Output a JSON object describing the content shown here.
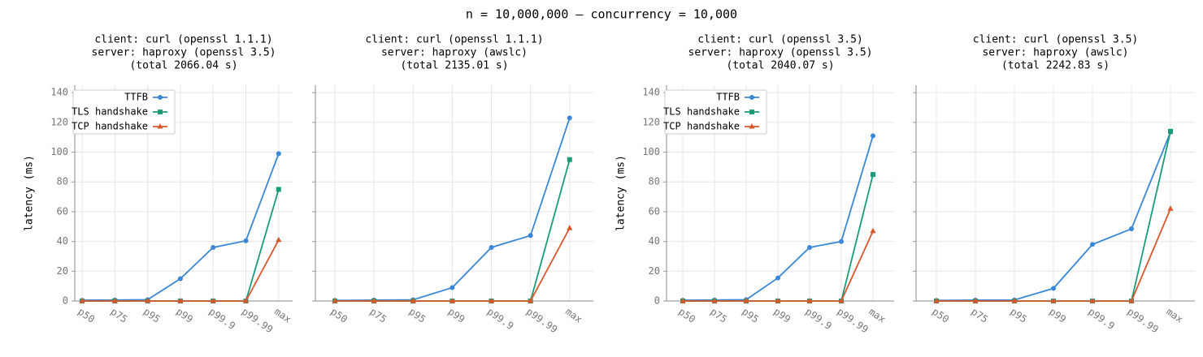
{
  "title": "n = 10,000,000 — concurrency = 10,000",
  "chart_data": [
    {
      "type": "line",
      "title": [
        "client: curl (openssl 1.1.1)",
        "server: haproxy (openssl 3.5)",
        "(total 2066.04 s)"
      ],
      "ylabel": "latency (ms)",
      "ytick_labels": true,
      "legend": "upper left",
      "grid": true,
      "categories": [
        "p50",
        "p75",
        "p95",
        "p99",
        "p99.9",
        "p99.99",
        "max"
      ],
      "ylim": [
        0,
        145
      ],
      "yticks": [
        0,
        20,
        40,
        60,
        80,
        100,
        120,
        140
      ],
      "series": [
        {
          "name": "TTFB",
          "color": "#3a87d8",
          "marker": "circle",
          "values": [
            0.5,
            0.7,
            0.9,
            15,
            36,
            40.5,
            99
          ]
        },
        {
          "name": "TLS handshake",
          "color": "#1a9c7a",
          "marker": "square",
          "values": [
            0,
            0,
            0,
            0,
            0,
            0,
            75
          ]
        },
        {
          "name": "TCP handshake",
          "color": "#d9572b",
          "marker": "triangle",
          "values": [
            0,
            0,
            0,
            0,
            0,
            0,
            41
          ]
        }
      ]
    },
    {
      "type": "line",
      "title": [
        "client: curl (openssl 1.1.1)",
        "server: haproxy (awslc)",
        "(total 2135.01 s)"
      ],
      "ytick_labels": false,
      "grid": true,
      "categories": [
        "p50",
        "p75",
        "p95",
        "p99",
        "p99.9",
        "p99.99",
        "max"
      ],
      "ylim": [
        0,
        145
      ],
      "yticks": [
        0,
        20,
        40,
        60,
        80,
        100,
        120,
        140
      ],
      "series": [
        {
          "color": "#3a87d8",
          "marker": "circle",
          "values": [
            0.4,
            0.6,
            0.8,
            9,
            36,
            44,
            123
          ]
        },
        {
          "color": "#1a9c7a",
          "marker": "square",
          "values": [
            0,
            0,
            0,
            0,
            0,
            0,
            95
          ]
        },
        {
          "color": "#d9572b",
          "marker": "triangle",
          "values": [
            0,
            0,
            0,
            0,
            0,
            0,
            49
          ]
        }
      ]
    },
    {
      "type": "line",
      "title": [
        "client: curl (openssl 3.5)",
        "server: haproxy (openssl 3.5)",
        "(total 2040.07 s)"
      ],
      "ylabel": "latency (ms)",
      "ytick_labels": true,
      "legend": "upper left",
      "grid": true,
      "categories": [
        "p50",
        "p75",
        "p95",
        "p99",
        "p99.9",
        "p99.99",
        "max"
      ],
      "ylim": [
        0,
        145
      ],
      "yticks": [
        0,
        20,
        40,
        60,
        80,
        100,
        120,
        140
      ],
      "series": [
        {
          "name": "TTFB",
          "color": "#3a87d8",
          "marker": "circle",
          "values": [
            0.5,
            0.7,
            0.9,
            15.5,
            36,
            40,
            111
          ]
        },
        {
          "name": "TLS handshake",
          "color": "#1a9c7a",
          "marker": "square",
          "values": [
            0,
            0,
            0,
            0,
            0,
            0,
            85
          ]
        },
        {
          "name": "TCP handshake",
          "color": "#d9572b",
          "marker": "triangle",
          "values": [
            0,
            0,
            0,
            0,
            0,
            0,
            47
          ]
        }
      ]
    },
    {
      "type": "line",
      "title": [
        "client: curl (openssl 3.5)",
        "server: haproxy (awslc)",
        "(total 2242.83 s)"
      ],
      "ytick_labels": false,
      "grid": true,
      "categories": [
        "p50",
        "p75",
        "p95",
        "p99",
        "p99.9",
        "p99.99",
        "max"
      ],
      "ylim": [
        0,
        145
      ],
      "yticks": [
        0,
        20,
        40,
        60,
        80,
        100,
        120,
        140
      ],
      "series": [
        {
          "color": "#3a87d8",
          "marker": "circle",
          "values": [
            0.4,
            0.6,
            0.7,
            8.5,
            38,
            48.5,
            113.5
          ]
        },
        {
          "color": "#1a9c7a",
          "marker": "square",
          "values": [
            0,
            0,
            0,
            0,
            0,
            0,
            114
          ]
        },
        {
          "color": "#d9572b",
          "marker": "triangle",
          "values": [
            0,
            0,
            0,
            0,
            0,
            0,
            62
          ]
        }
      ]
    }
  ]
}
